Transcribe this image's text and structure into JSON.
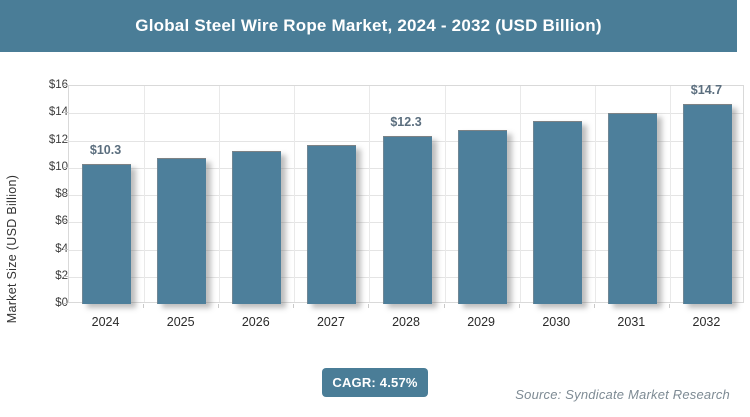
{
  "header": {
    "title": "Global Steel Wire Rope Market, 2024 - 2032 (USD Billion)",
    "bg_color": "#4A7D97"
  },
  "chart_data": {
    "type": "bar",
    "title": "Global Steel Wire Rope Market, 2024 - 2032 (USD Billion)",
    "categories": [
      "2024",
      "2025",
      "2026",
      "2027",
      "2028",
      "2029",
      "2030",
      "2031",
      "2032"
    ],
    "values": [
      10.3,
      10.7,
      11.2,
      11.7,
      12.3,
      12.8,
      13.4,
      14.0,
      14.7
    ],
    "point_labels": [
      "$10.3",
      "",
      "",
      "",
      "$12.3",
      "",
      "",
      "",
      "$14.7"
    ],
    "xlabel": "",
    "ylabel": "Market Size (USD Billion)",
    "ylim": [
      0,
      16
    ],
    "ytick_step": 2,
    "ytick_prefix": "$",
    "grid": true,
    "legend": "none",
    "bar_color": "#4D7F9B",
    "point_label_color": "#5B6E7E"
  },
  "footer": {
    "cagr_label": "CAGR: 4.57%",
    "badge_color": "#4A7D97",
    "source": "Source: Syndicate Market Research"
  }
}
